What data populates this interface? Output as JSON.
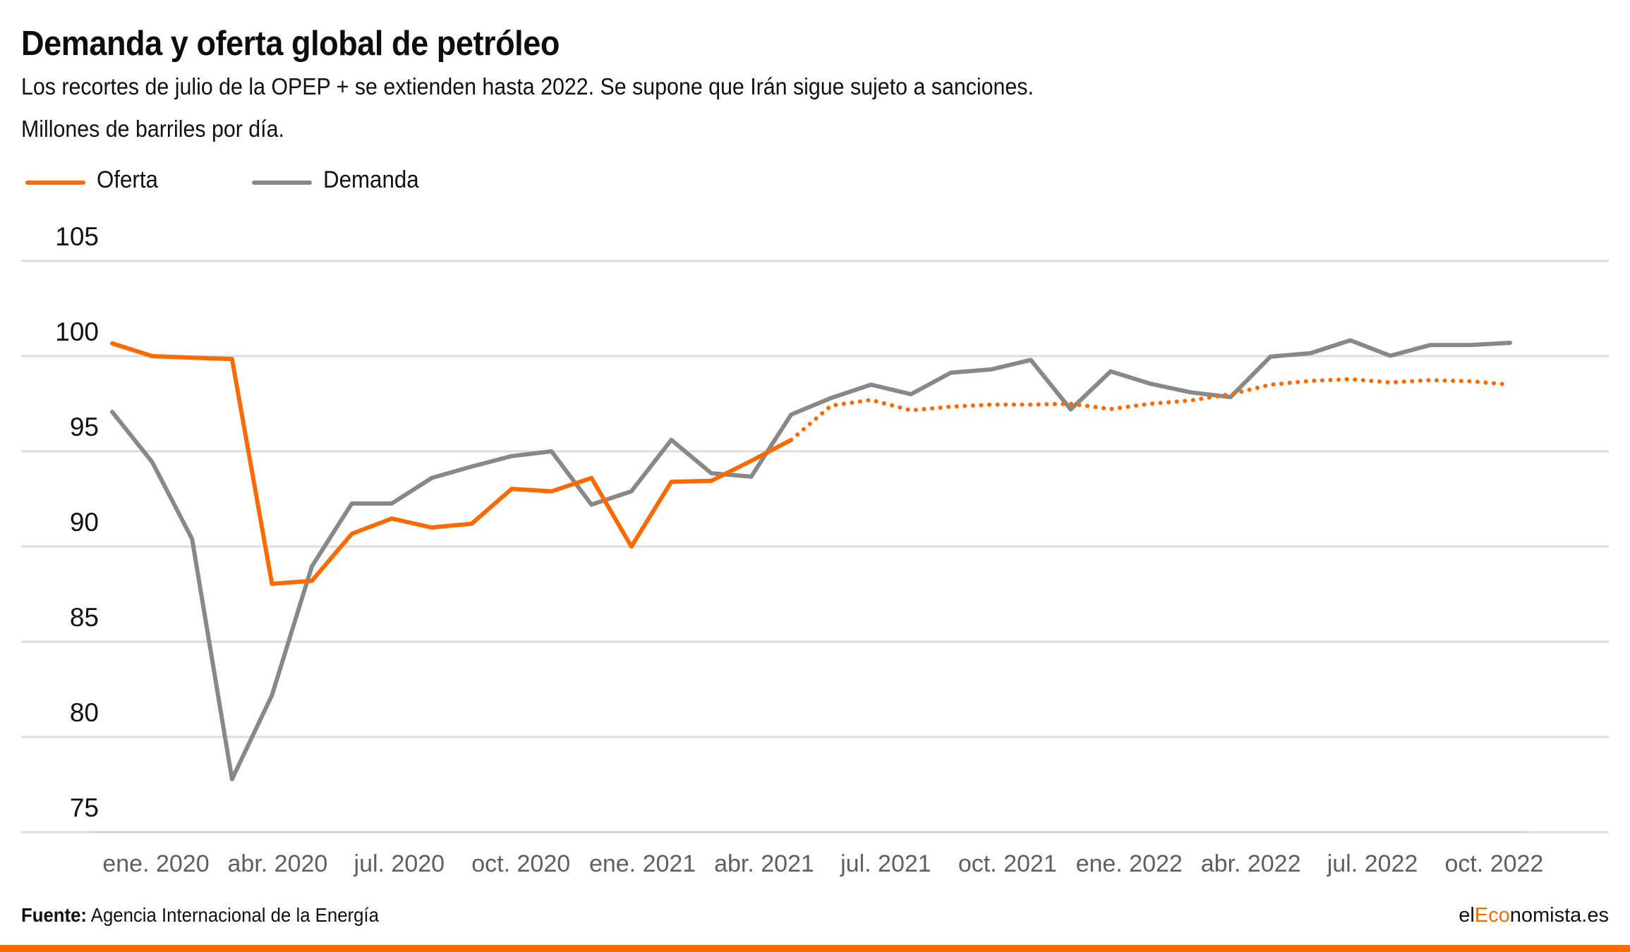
{
  "header": {
    "title": "Demanda y oferta global de petróleo",
    "subtitle": "Los recortes de julio de la OPEP + se extienden hasta 2022. Se supone que Irán sigue sujeto a sanciones.",
    "units": "Millones de barriles por día."
  },
  "legend": [
    {
      "label": "Oferta",
      "color": "#ff6a00"
    },
    {
      "label": "Demanda",
      "color": "#888888"
    }
  ],
  "footer": {
    "source_label": "Fuente:",
    "source_text": "Agencia Internacional de la Energía",
    "brand_prefix": "el",
    "brand_accent": "Eco",
    "brand_suffix": "nomista.es"
  },
  "colors": {
    "oferta": "#ff6a00",
    "demanda": "#888888",
    "grid": "#dddddd",
    "accent_bar": "#ff6a00"
  },
  "chart_data": {
    "type": "line",
    "title": "Demanda y oferta global de petróleo",
    "subtitle": "Los recortes de julio de la OPEP + se extienden hasta 2022. Se supone que Irán sigue sujeto a sanciones.",
    "xlabel": "",
    "ylabel": "Millones de barriles por día",
    "ylim": [
      75,
      105
    ],
    "yticks": [
      75,
      80,
      85,
      90,
      95,
      100,
      105
    ],
    "grid": true,
    "legend_position": "top-left",
    "x_count": 36,
    "x_tick_labels": [
      "ene. 2020",
      "abr. 2020",
      "jul. 2020",
      "oct. 2020",
      "ene. 2021",
      "abr. 2021",
      "jul. 2021",
      "oct. 2021",
      "ene. 2022",
      "abr. 2022",
      "jul. 2022",
      "oct. 2022"
    ],
    "x_tick_indices": [
      1,
      4,
      7,
      10,
      13,
      16,
      19,
      22,
      25,
      28,
      31,
      34
    ],
    "series": [
      {
        "name": "Oferta",
        "color": "#ff6a00",
        "solid_until_index": 17,
        "projection_style": "dotted",
        "values": [
          100.67,
          100.0,
          99.92,
          99.85,
          88.04,
          88.2,
          90.67,
          91.47,
          91.0,
          91.2,
          93.03,
          92.9,
          93.6,
          90.0,
          93.4,
          93.45,
          94.5,
          95.6,
          97.4,
          97.7,
          97.15,
          97.35,
          97.45,
          97.45,
          97.5,
          97.22,
          97.5,
          97.67,
          98.0,
          98.5,
          98.7,
          98.79,
          98.62,
          98.74,
          98.68,
          98.5
        ]
      },
      {
        "name": "Demanda",
        "color": "#888888",
        "values": [
          97.07,
          94.44,
          90.4,
          77.78,
          82.19,
          88.96,
          92.26,
          92.26,
          93.6,
          94.2,
          94.75,
          95.0,
          92.2,
          92.9,
          95.6,
          93.85,
          93.67,
          96.93,
          97.8,
          98.5,
          98.0,
          99.13,
          99.3,
          99.8,
          97.2,
          99.2,
          98.55,
          98.1,
          97.85,
          99.97,
          100.15,
          100.83,
          100.02,
          100.58,
          100.58,
          100.7
        ]
      }
    ]
  }
}
